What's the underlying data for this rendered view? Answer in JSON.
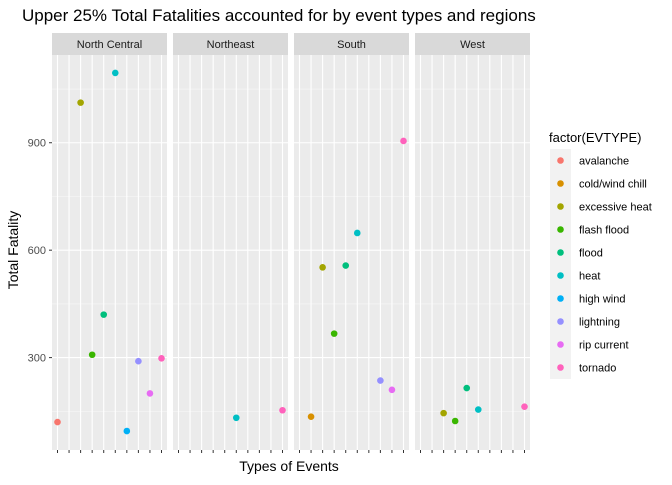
{
  "chart_data": {
    "type": "scatter",
    "title": "Upper 25% Total Fatalities accounted for by event types and regions",
    "xlabel": "Types of Events",
    "ylabel": "Total Fatality",
    "legend_title": "factor(EVTYPE)",
    "legend_position": "right",
    "grid": true,
    "ylim": [
      42,
      1145
    ],
    "y_ticks": [
      300,
      600,
      900
    ],
    "x_categories": [
      "avalanche",
      "cold/wind chill",
      "excessive heat",
      "flash flood",
      "flood",
      "heat",
      "high wind",
      "lightning",
      "rip current",
      "tornado"
    ],
    "panels": [
      "North Central",
      "Northeast",
      "South",
      "West"
    ],
    "series": [
      {
        "name": "avalanche",
        "color": "#F8766D"
      },
      {
        "name": "cold/wind chill",
        "color": "#D89000"
      },
      {
        "name": "excessive heat",
        "color": "#A3A500"
      },
      {
        "name": "flash flood",
        "color": "#39B600"
      },
      {
        "name": "flood",
        "color": "#00BF7D"
      },
      {
        "name": "heat",
        "color": "#00BFC4"
      },
      {
        "name": "high wind",
        "color": "#00B0F6"
      },
      {
        "name": "lightning",
        "color": "#9590FF"
      },
      {
        "name": "rip current",
        "color": "#E76BF3"
      },
      {
        "name": "tornado",
        "color": "#FF62BC"
      }
    ],
    "points": [
      {
        "panel": "North Central",
        "event": "avalanche",
        "y": 120
      },
      {
        "panel": "North Central",
        "event": "excessive heat",
        "y": 1012
      },
      {
        "panel": "North Central",
        "event": "flash flood",
        "y": 308
      },
      {
        "panel": "North Central",
        "event": "flood",
        "y": 420
      },
      {
        "panel": "North Central",
        "event": "heat",
        "y": 1095
      },
      {
        "panel": "North Central",
        "event": "high wind",
        "y": 95
      },
      {
        "panel": "North Central",
        "event": "lightning",
        "y": 290
      },
      {
        "panel": "North Central",
        "event": "rip current",
        "y": 200
      },
      {
        "panel": "North Central",
        "event": "tornado",
        "y": 298
      },
      {
        "panel": "Northeast",
        "event": "heat",
        "y": 132
      },
      {
        "panel": "Northeast",
        "event": "tornado",
        "y": 153
      },
      {
        "panel": "South",
        "event": "cold/wind chill",
        "y": 135
      },
      {
        "panel": "South",
        "event": "excessive heat",
        "y": 552
      },
      {
        "panel": "South",
        "event": "flash flood",
        "y": 367
      },
      {
        "panel": "South",
        "event": "flood",
        "y": 557
      },
      {
        "panel": "South",
        "event": "heat",
        "y": 648
      },
      {
        "panel": "South",
        "event": "lightning",
        "y": 236
      },
      {
        "panel": "South",
        "event": "rip current",
        "y": 210
      },
      {
        "panel": "South",
        "event": "tornado",
        "y": 905
      },
      {
        "panel": "West",
        "event": "excessive heat",
        "y": 145
      },
      {
        "panel": "West",
        "event": "flash flood",
        "y": 123
      },
      {
        "panel": "West",
        "event": "flood",
        "y": 215
      },
      {
        "panel": "West",
        "event": "heat",
        "y": 155
      },
      {
        "panel": "West",
        "event": "tornado",
        "y": 163
      }
    ]
  }
}
